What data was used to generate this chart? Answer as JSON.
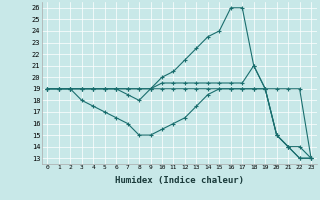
{
  "xlabel": "Humidex (Indice chaleur)",
  "background_color": "#c8e8e8",
  "line_color": "#1a6e6e",
  "xlim": [
    -0.5,
    23.5
  ],
  "ylim": [
    12.5,
    26.5
  ],
  "xticks": [
    0,
    1,
    2,
    3,
    4,
    5,
    6,
    7,
    8,
    9,
    10,
    11,
    12,
    13,
    14,
    15,
    16,
    17,
    18,
    19,
    20,
    21,
    22,
    23
  ],
  "yticks": [
    13,
    14,
    15,
    16,
    17,
    18,
    19,
    20,
    21,
    22,
    23,
    24,
    25,
    26
  ],
  "lines": [
    {
      "x": [
        0,
        1,
        2,
        3,
        4,
        5,
        6,
        7,
        8,
        9,
        10,
        11,
        12,
        13,
        14,
        15,
        16,
        17,
        18,
        19,
        20,
        21,
        22,
        23
      ],
      "y": [
        19,
        19,
        19,
        19,
        19,
        19,
        19,
        19,
        19,
        19,
        19,
        19,
        19,
        19,
        19,
        19,
        19,
        19,
        19,
        19,
        19,
        19,
        19,
        13
      ]
    },
    {
      "x": [
        0,
        1,
        2,
        3,
        4,
        5,
        6,
        7,
        8,
        9,
        10,
        11,
        12,
        13,
        14,
        15,
        16,
        17,
        18,
        19,
        20,
        21,
        22,
        23
      ],
      "y": [
        19,
        19,
        19,
        19,
        19,
        19,
        19,
        19,
        19,
        19,
        20,
        20.5,
        21.5,
        22.5,
        23.5,
        24,
        26,
        26,
        21,
        19,
        15,
        14,
        13,
        13
      ]
    },
    {
      "x": [
        0,
        1,
        2,
        3,
        4,
        5,
        6,
        7,
        8,
        9,
        10,
        11,
        12,
        13,
        14,
        15,
        16,
        17,
        18,
        19,
        20,
        21,
        22,
        23
      ],
      "y": [
        19,
        19,
        19,
        19,
        19,
        19,
        19,
        18.5,
        18,
        19,
        19.5,
        19.5,
        19.5,
        19.5,
        19.5,
        19.5,
        19.5,
        19.5,
        21,
        19,
        15,
        14,
        13,
        13
      ]
    },
    {
      "x": [
        0,
        1,
        2,
        3,
        4,
        5,
        6,
        7,
        8,
        9,
        10,
        11,
        12,
        13,
        14,
        15,
        16,
        17,
        18,
        19,
        20,
        21,
        22,
        23
      ],
      "y": [
        19,
        19,
        19,
        18,
        17.5,
        17,
        16.5,
        16,
        15,
        15,
        15.5,
        16,
        16.5,
        17.5,
        18.5,
        19,
        19,
        19,
        19,
        19,
        15,
        14,
        14,
        13
      ]
    }
  ]
}
